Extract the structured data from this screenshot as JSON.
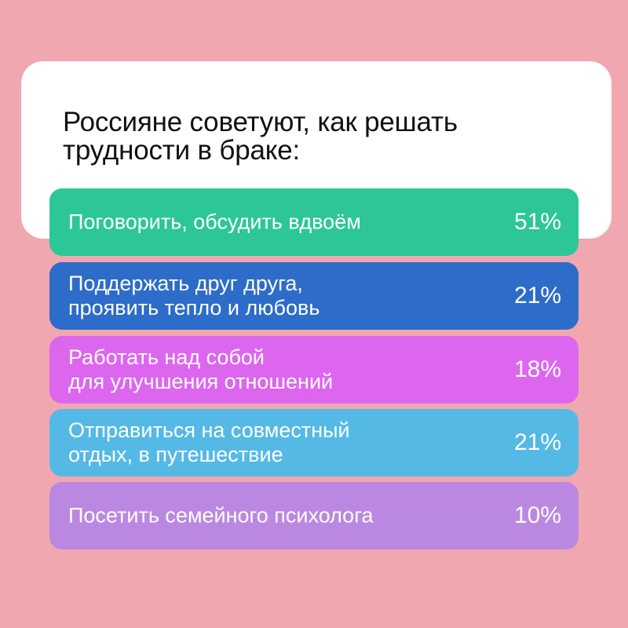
{
  "title_lines": [
    "Россияне советуют, как решать",
    "трудности в браке:"
  ],
  "chart_data": {
    "type": "bar",
    "title": "Россияне советуют, как решать трудности в браке:",
    "categories": [
      "Поговорить, обсудить вдвоём",
      "Поддержать друг друга, проявить тепло и любовь",
      "Работать над собой для улучшения отношений",
      "Отправиться на совместный отдых, в путешествие",
      "Посетить семейного психолога"
    ],
    "values": [
      51,
      21,
      18,
      21,
      10
    ],
    "unit": "%"
  },
  "rows": [
    {
      "lines": [
        "Поговорить, обсудить вдвоём"
      ],
      "value": "51%",
      "color": "#2dc797"
    },
    {
      "lines": [
        "Поддержать друг друга,",
        "проявить тепло и любовь"
      ],
      "value": "21%",
      "color": "#2d6cc8"
    },
    {
      "lines": [
        "Работать над собой",
        "для улучшения отношений"
      ],
      "value": "18%",
      "color": "#dd66ef"
    },
    {
      "lines": [
        "Отправиться на совместный",
        "отдых, в путешествие"
      ],
      "value": "21%",
      "color": "#55b9e5"
    },
    {
      "lines": [
        "Посетить семейного психолога"
      ],
      "value": "10%",
      "color": "#bb88e1"
    }
  ]
}
